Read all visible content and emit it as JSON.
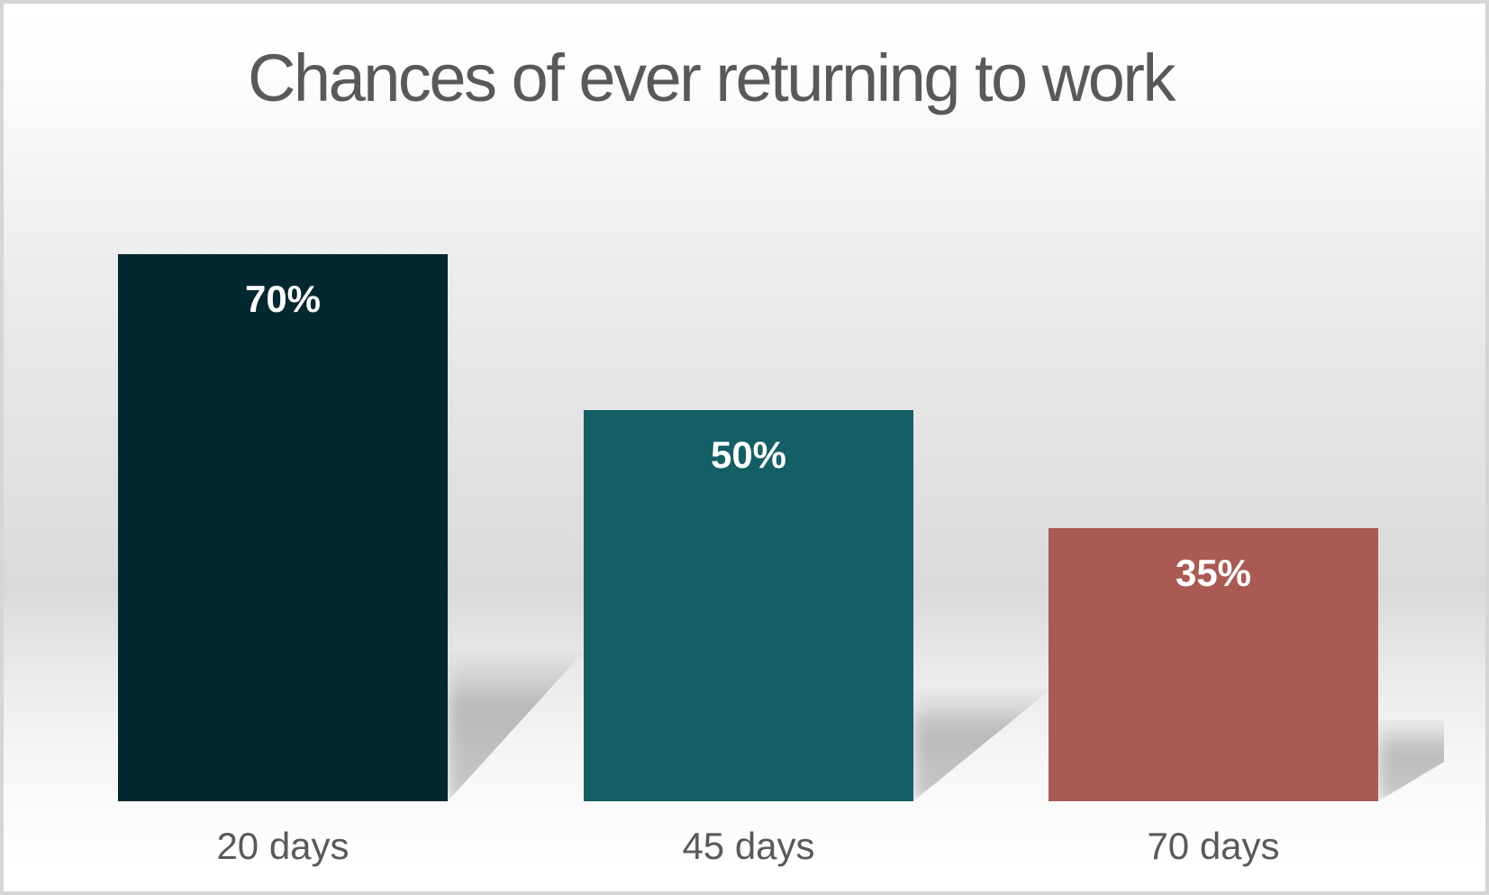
{
  "chart_data": {
    "type": "bar",
    "title": "Chances of ever returning to work",
    "categories": [
      "20 days",
      "45 days",
      "70 days"
    ],
    "values": [
      70,
      50,
      35
    ],
    "data_labels": [
      "70%",
      "50%",
      "35%"
    ],
    "unit": "%",
    "ylim": [
      0,
      100
    ],
    "grid": false,
    "legend": false,
    "axes_visible": false,
    "bar_colors": [
      "#03282f",
      "#135f65",
      "#aa5a53"
    ],
    "title_color": "#595959",
    "category_label_color": "#595959",
    "data_label_color": "#ffffff",
    "background_top_color": "#ffffff",
    "background_mid_color": "#dcdcdc",
    "background_bottom_color": "#ffffff",
    "frame_border_color": "#d5d5d5"
  }
}
